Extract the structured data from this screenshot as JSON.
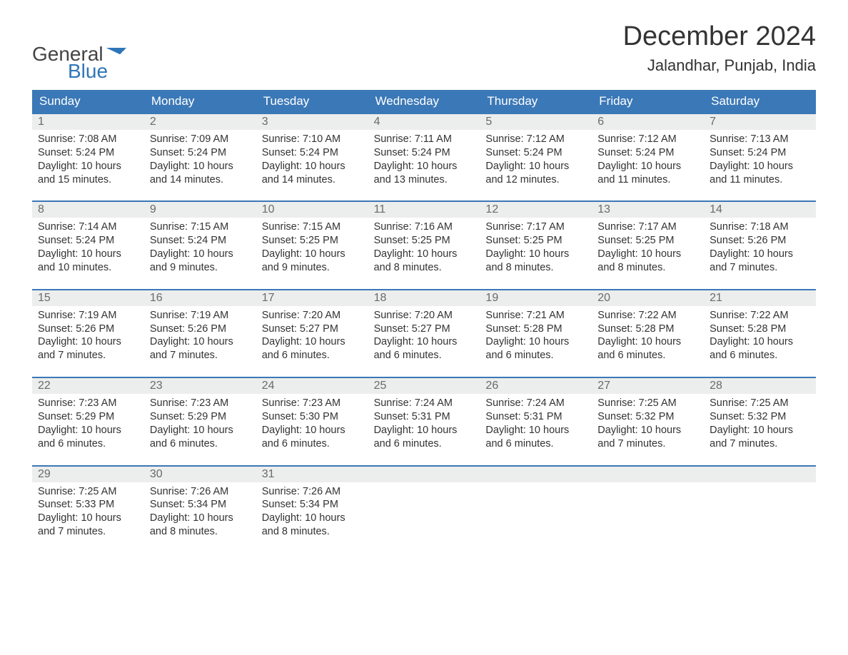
{
  "brand": {
    "word1": "General",
    "word2": "Blue"
  },
  "title": "December 2024",
  "location": "Jalandhar, Punjab, India",
  "colors": {
    "header_bg": "#3b78b7",
    "header_text": "#ffffff",
    "daynum_bg": "#eceded",
    "daynum_border": "#3b78b7",
    "body_text": "#333333",
    "brand_blue": "#2f76b8"
  },
  "day_headers": [
    "Sunday",
    "Monday",
    "Tuesday",
    "Wednesday",
    "Thursday",
    "Friday",
    "Saturday"
  ],
  "labels": {
    "sunrise": "Sunrise:",
    "sunset": "Sunset:",
    "daylight": "Daylight:"
  },
  "weeks": [
    [
      {
        "n": "1",
        "sr": "7:08 AM",
        "ss": "5:24 PM",
        "dl": "10 hours and 15 minutes."
      },
      {
        "n": "2",
        "sr": "7:09 AM",
        "ss": "5:24 PM",
        "dl": "10 hours and 14 minutes."
      },
      {
        "n": "3",
        "sr": "7:10 AM",
        "ss": "5:24 PM",
        "dl": "10 hours and 14 minutes."
      },
      {
        "n": "4",
        "sr": "7:11 AM",
        "ss": "5:24 PM",
        "dl": "10 hours and 13 minutes."
      },
      {
        "n": "5",
        "sr": "7:12 AM",
        "ss": "5:24 PM",
        "dl": "10 hours and 12 minutes."
      },
      {
        "n": "6",
        "sr": "7:12 AM",
        "ss": "5:24 PM",
        "dl": "10 hours and 11 minutes."
      },
      {
        "n": "7",
        "sr": "7:13 AM",
        "ss": "5:24 PM",
        "dl": "10 hours and 11 minutes."
      }
    ],
    [
      {
        "n": "8",
        "sr": "7:14 AM",
        "ss": "5:24 PM",
        "dl": "10 hours and 10 minutes."
      },
      {
        "n": "9",
        "sr": "7:15 AM",
        "ss": "5:24 PM",
        "dl": "10 hours and 9 minutes."
      },
      {
        "n": "10",
        "sr": "7:15 AM",
        "ss": "5:25 PM",
        "dl": "10 hours and 9 minutes."
      },
      {
        "n": "11",
        "sr": "7:16 AM",
        "ss": "5:25 PM",
        "dl": "10 hours and 8 minutes."
      },
      {
        "n": "12",
        "sr": "7:17 AM",
        "ss": "5:25 PM",
        "dl": "10 hours and 8 minutes."
      },
      {
        "n": "13",
        "sr": "7:17 AM",
        "ss": "5:25 PM",
        "dl": "10 hours and 8 minutes."
      },
      {
        "n": "14",
        "sr": "7:18 AM",
        "ss": "5:26 PM",
        "dl": "10 hours and 7 minutes."
      }
    ],
    [
      {
        "n": "15",
        "sr": "7:19 AM",
        "ss": "5:26 PM",
        "dl": "10 hours and 7 minutes."
      },
      {
        "n": "16",
        "sr": "7:19 AM",
        "ss": "5:26 PM",
        "dl": "10 hours and 7 minutes."
      },
      {
        "n": "17",
        "sr": "7:20 AM",
        "ss": "5:27 PM",
        "dl": "10 hours and 6 minutes."
      },
      {
        "n": "18",
        "sr": "7:20 AM",
        "ss": "5:27 PM",
        "dl": "10 hours and 6 minutes."
      },
      {
        "n": "19",
        "sr": "7:21 AM",
        "ss": "5:28 PM",
        "dl": "10 hours and 6 minutes."
      },
      {
        "n": "20",
        "sr": "7:22 AM",
        "ss": "5:28 PM",
        "dl": "10 hours and 6 minutes."
      },
      {
        "n": "21",
        "sr": "7:22 AM",
        "ss": "5:28 PM",
        "dl": "10 hours and 6 minutes."
      }
    ],
    [
      {
        "n": "22",
        "sr": "7:23 AM",
        "ss": "5:29 PM",
        "dl": "10 hours and 6 minutes."
      },
      {
        "n": "23",
        "sr": "7:23 AM",
        "ss": "5:29 PM",
        "dl": "10 hours and 6 minutes."
      },
      {
        "n": "24",
        "sr": "7:23 AM",
        "ss": "5:30 PM",
        "dl": "10 hours and 6 minutes."
      },
      {
        "n": "25",
        "sr": "7:24 AM",
        "ss": "5:31 PM",
        "dl": "10 hours and 6 minutes."
      },
      {
        "n": "26",
        "sr": "7:24 AM",
        "ss": "5:31 PM",
        "dl": "10 hours and 6 minutes."
      },
      {
        "n": "27",
        "sr": "7:25 AM",
        "ss": "5:32 PM",
        "dl": "10 hours and 7 minutes."
      },
      {
        "n": "28",
        "sr": "7:25 AM",
        "ss": "5:32 PM",
        "dl": "10 hours and 7 minutes."
      }
    ],
    [
      {
        "n": "29",
        "sr": "7:25 AM",
        "ss": "5:33 PM",
        "dl": "10 hours and 7 minutes."
      },
      {
        "n": "30",
        "sr": "7:26 AM",
        "ss": "5:34 PM",
        "dl": "10 hours and 8 minutes."
      },
      {
        "n": "31",
        "sr": "7:26 AM",
        "ss": "5:34 PM",
        "dl": "10 hours and 8 minutes."
      },
      null,
      null,
      null,
      null
    ]
  ]
}
